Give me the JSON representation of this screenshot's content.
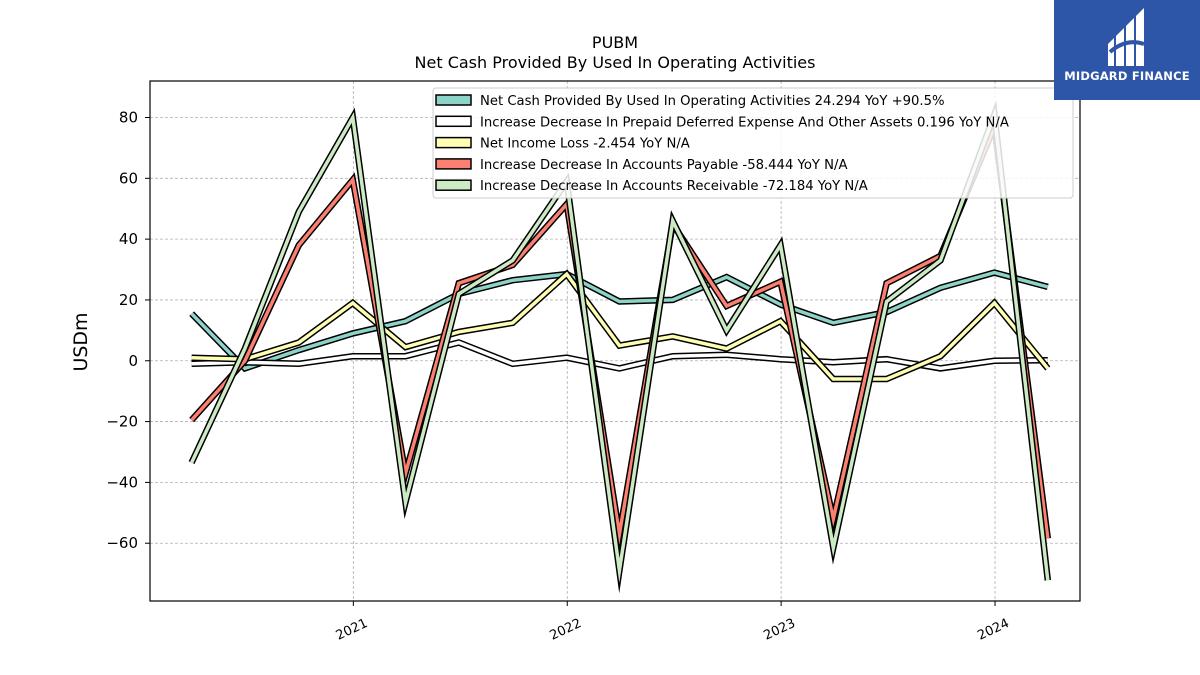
{
  "chart_data": {
    "type": "line",
    "title": "PUBM",
    "subtitle": "Net Cash Provided By Used In Operating Activities",
    "ylabel": "USDm",
    "xlabel": "",
    "ylim": [
      -79,
      92
    ],
    "yticks": [
      -60,
      -40,
      -20,
      0,
      20,
      40,
      60,
      80
    ],
    "ytick_labels": [
      "−60",
      "−40",
      "−20",
      "0",
      "20",
      "40",
      "60",
      "80"
    ],
    "xlim": [
      "2020-01-20",
      "2024-05-25"
    ],
    "xticks": [
      "2021-01-01",
      "2022-01-01",
      "2023-01-01",
      "2024-01-01"
    ],
    "xtick_labels": [
      "2021",
      "2022",
      "2023",
      "2024"
    ],
    "grid": true,
    "legend_position": "upper right",
    "x": [
      "2020-03-31",
      "2020-06-30",
      "2020-09-30",
      "2020-12-31",
      "2021-03-31",
      "2021-06-30",
      "2021-09-30",
      "2021-12-31",
      "2022-03-31",
      "2022-06-30",
      "2022-09-30",
      "2022-12-31",
      "2023-03-31",
      "2023-06-30",
      "2023-09-30",
      "2023-12-31",
      "2024-03-31"
    ],
    "series": [
      {
        "name": "Net Cash Provided By Used In Operating Activities",
        "legend_value": "24.294 YoY +90.5%",
        "color": "#8dd3c7",
        "values": [
          15.5,
          -2.5,
          3.5,
          9,
          13,
          22,
          26.5,
          28.5,
          19.5,
          20,
          27.5,
          18.5,
          12.5,
          16,
          24,
          29,
          24.3
        ]
      },
      {
        "name": "Increase Decrease In Prepaid Deferred Expense And Other Assets",
        "legend_value": "0.196 YoY N/A",
        "color": "#ffffff",
        "values": [
          -1,
          -0.5,
          -1,
          1.5,
          1.5,
          6,
          -1,
          1,
          -2.5,
          1.5,
          2,
          0.5,
          -0.5,
          0.5,
          -2.5,
          0,
          0.2
        ]
      },
      {
        "name": "Net Income Loss",
        "legend_value": "-2.454 YoY N/A",
        "color": "#ffffb3",
        "values": [
          1,
          0.5,
          6,
          19,
          4.5,
          9.5,
          12.5,
          28.5,
          5,
          8,
          4,
          13,
          -6,
          -6,
          1.5,
          19,
          -2.5
        ]
      },
      {
        "name": "Increase Decrease In Accounts Payable",
        "legend_value": "-58.444 YoY N/A",
        "color": "#fb8072",
        "values": [
          -19.5,
          0,
          38,
          59.5,
          -37,
          25.5,
          31.5,
          51.5,
          -57,
          45,
          18,
          26,
          -52,
          25.5,
          34.5,
          77,
          -58.4
        ]
      },
      {
        "name": "Increase Decrease In Accounts Receivable",
        "legend_value": "-72.184 YoY N/A",
        "color": "#ccebc5",
        "values": [
          -33.5,
          4,
          49,
          80,
          -46.5,
          22,
          33,
          59,
          -69,
          46,
          10,
          38,
          -61.5,
          19.5,
          33,
          81,
          -72.2
        ]
      }
    ]
  },
  "logo": {
    "text": "MIDGARD FINANCE"
  }
}
